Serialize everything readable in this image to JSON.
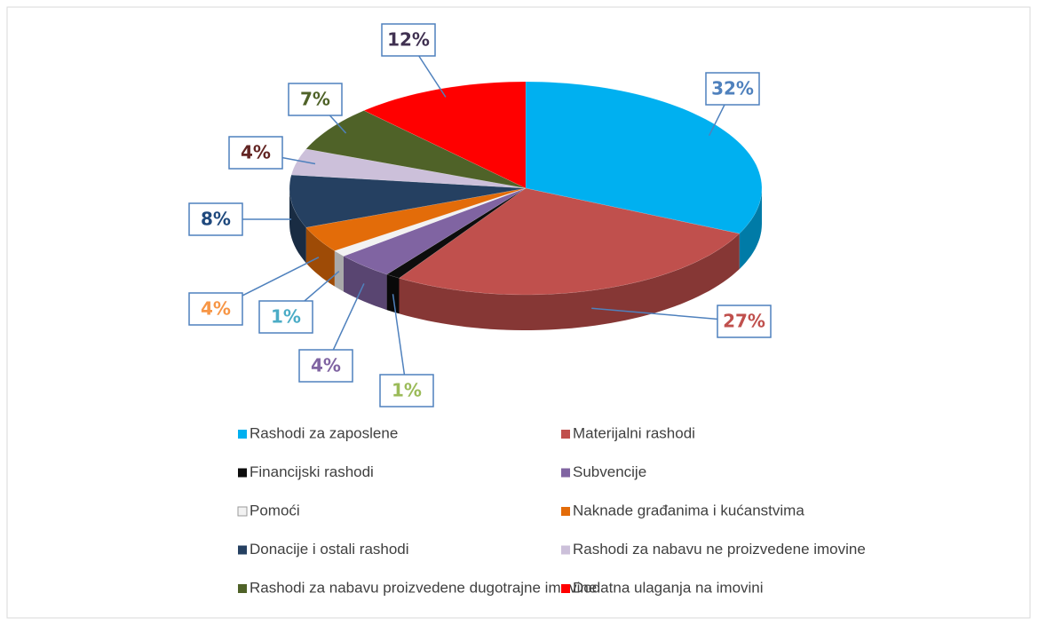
{
  "chart_data": {
    "type": "pie",
    "categories": [
      "Rashodi za zaposlene",
      "Materijalni rashodi",
      "Financijski rashodi",
      "Subvencije",
      "Pomoći",
      "Naknade građanima i kućanstvima",
      "Donacije i ostali rashodi",
      "Rashodi za nabavu ne proizvedene imovine",
      "Rashodi za nabavu proizvedene dugotrajne imovine",
      "Dodatna ulaganja na imovini"
    ],
    "values": [
      32,
      27,
      1,
      4,
      1,
      4,
      8,
      4,
      7,
      12
    ],
    "value_labels": [
      "32%",
      "27%",
      "1%",
      "4%",
      "1%",
      "4%",
      "8%",
      "4%",
      "7%",
      "12%"
    ],
    "colors": [
      "#00b0f0",
      "#c0504d",
      "#0d0d0d",
      "#8064a2",
      "#f2f2f2",
      "#e36c09",
      "#254061",
      "#ccc0da",
      "#4f6228",
      "#ff0000"
    ],
    "label_colors": [
      "#4f81bd",
      "#c0504d",
      "#9bbb59",
      "#8064a2",
      "#4bacc6",
      "#f79646",
      "#1f497d",
      "#632523",
      "#4f6228",
      "#403151"
    ],
    "legend": "bottom"
  }
}
